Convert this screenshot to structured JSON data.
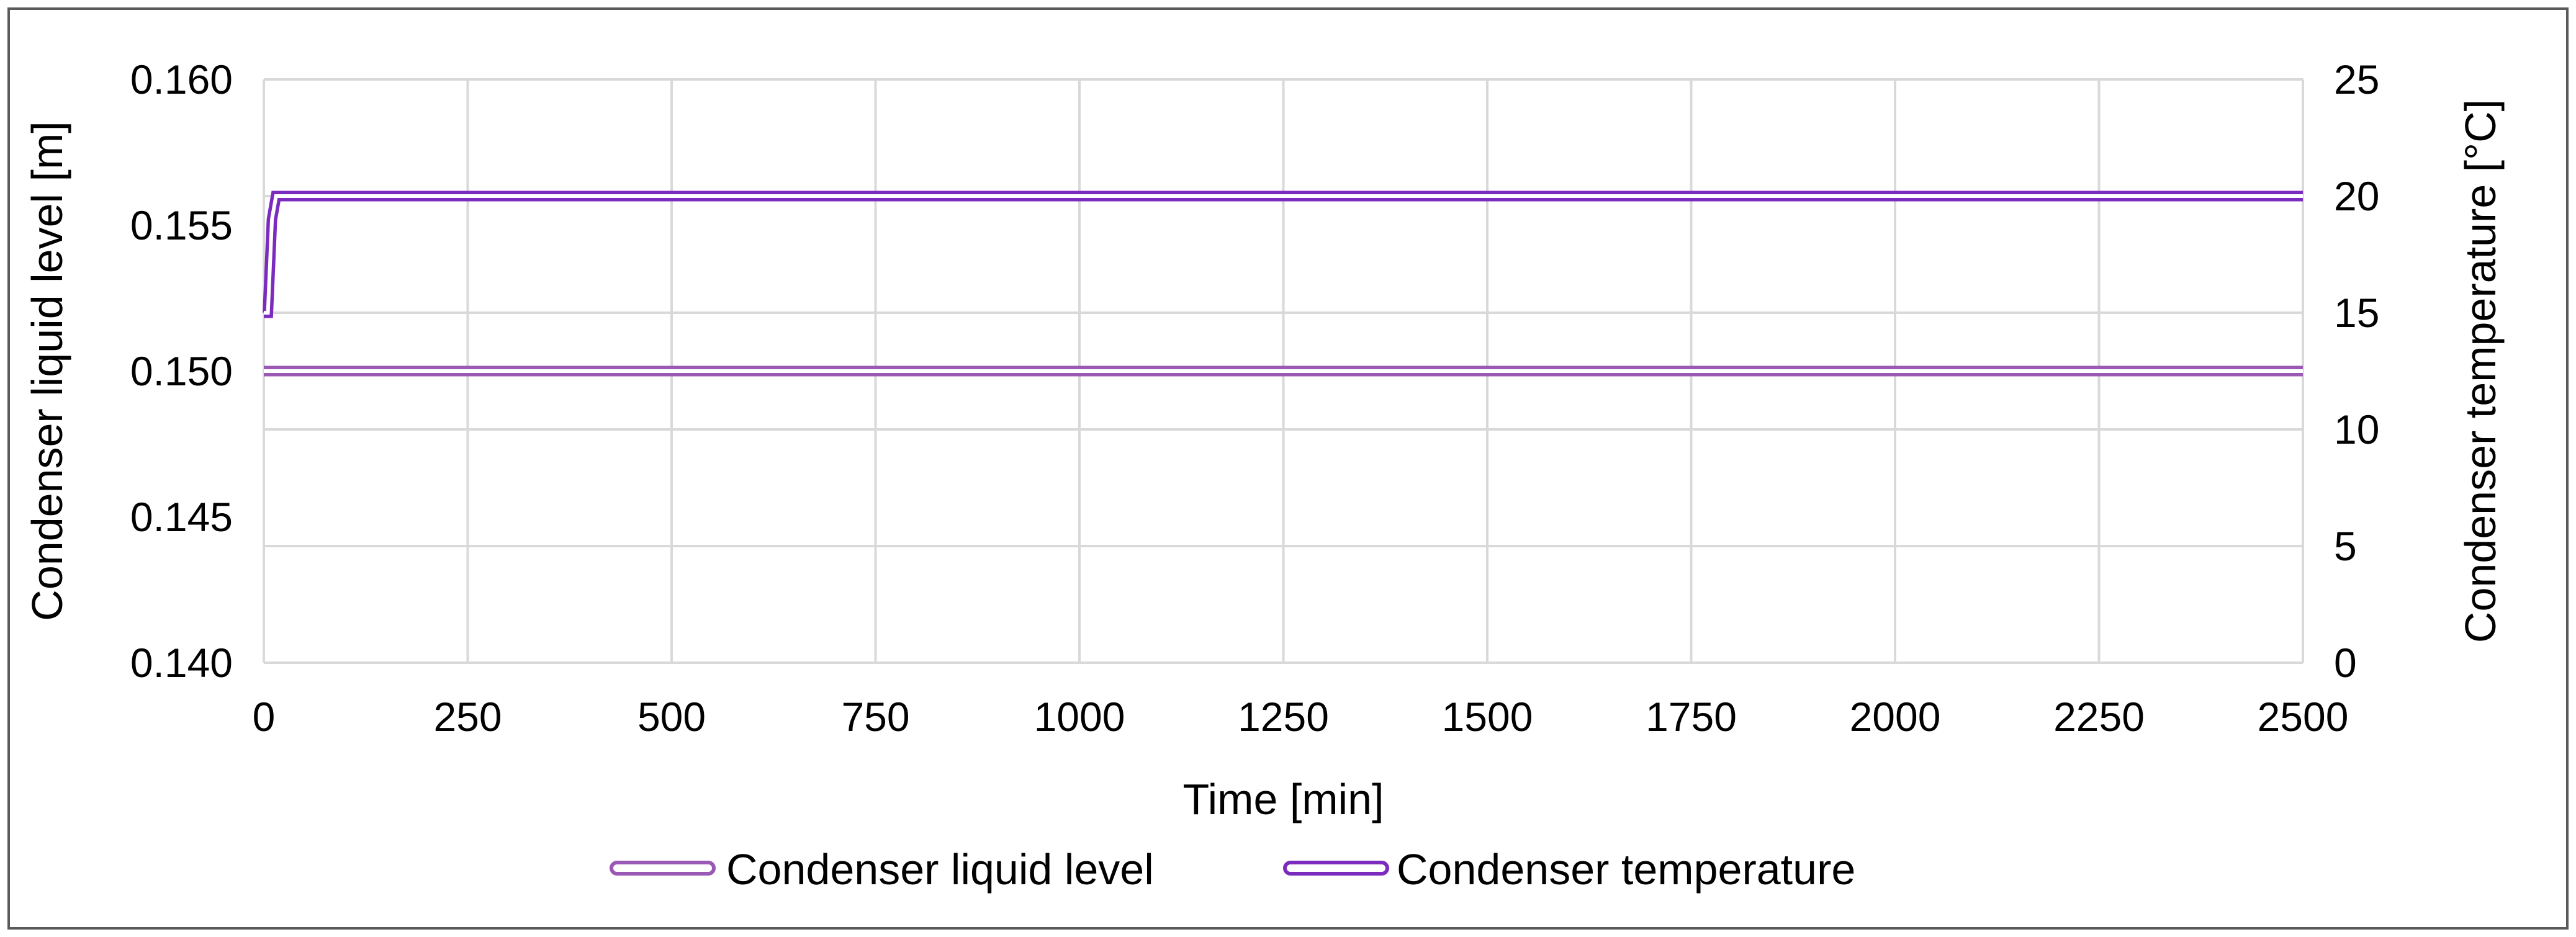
{
  "chart_data": {
    "type": "line",
    "x_axis": {
      "label": "Time [min]",
      "range": [
        0,
        2500
      ],
      "ticks": [
        "0",
        "250",
        "500",
        "750",
        "1000",
        "1250",
        "1500",
        "1750",
        "2000",
        "2250",
        "2500"
      ]
    },
    "y_axis_left": {
      "label": "Condenser liquid level [m]",
      "range": [
        0.14,
        0.16
      ],
      "ticks": [
        "0.140",
        "0.145",
        "0.150",
        "0.155",
        "0.160"
      ]
    },
    "y_axis_right": {
      "label": "Condenser temperature [°C]",
      "range": [
        0,
        25
      ],
      "ticks": [
        "0",
        "5",
        "10",
        "15",
        "20",
        "25"
      ]
    },
    "grid": true,
    "legend_position": "bottom",
    "series": [
      {
        "name": "Condenser liquid level",
        "axis": "left",
        "color": "#9b59b6",
        "style": "double-line",
        "points": [
          [
            0,
            0.15
          ],
          [
            2500,
            0.15
          ]
        ]
      },
      {
        "name": "Condenser temperature",
        "axis": "right",
        "color": "#7b2cbf",
        "style": "double-line",
        "points": [
          [
            0,
            15.0
          ],
          [
            5,
            15.0
          ],
          [
            10,
            19.0
          ],
          [
            15,
            20.0
          ],
          [
            2500,
            20.0
          ]
        ]
      }
    ]
  }
}
